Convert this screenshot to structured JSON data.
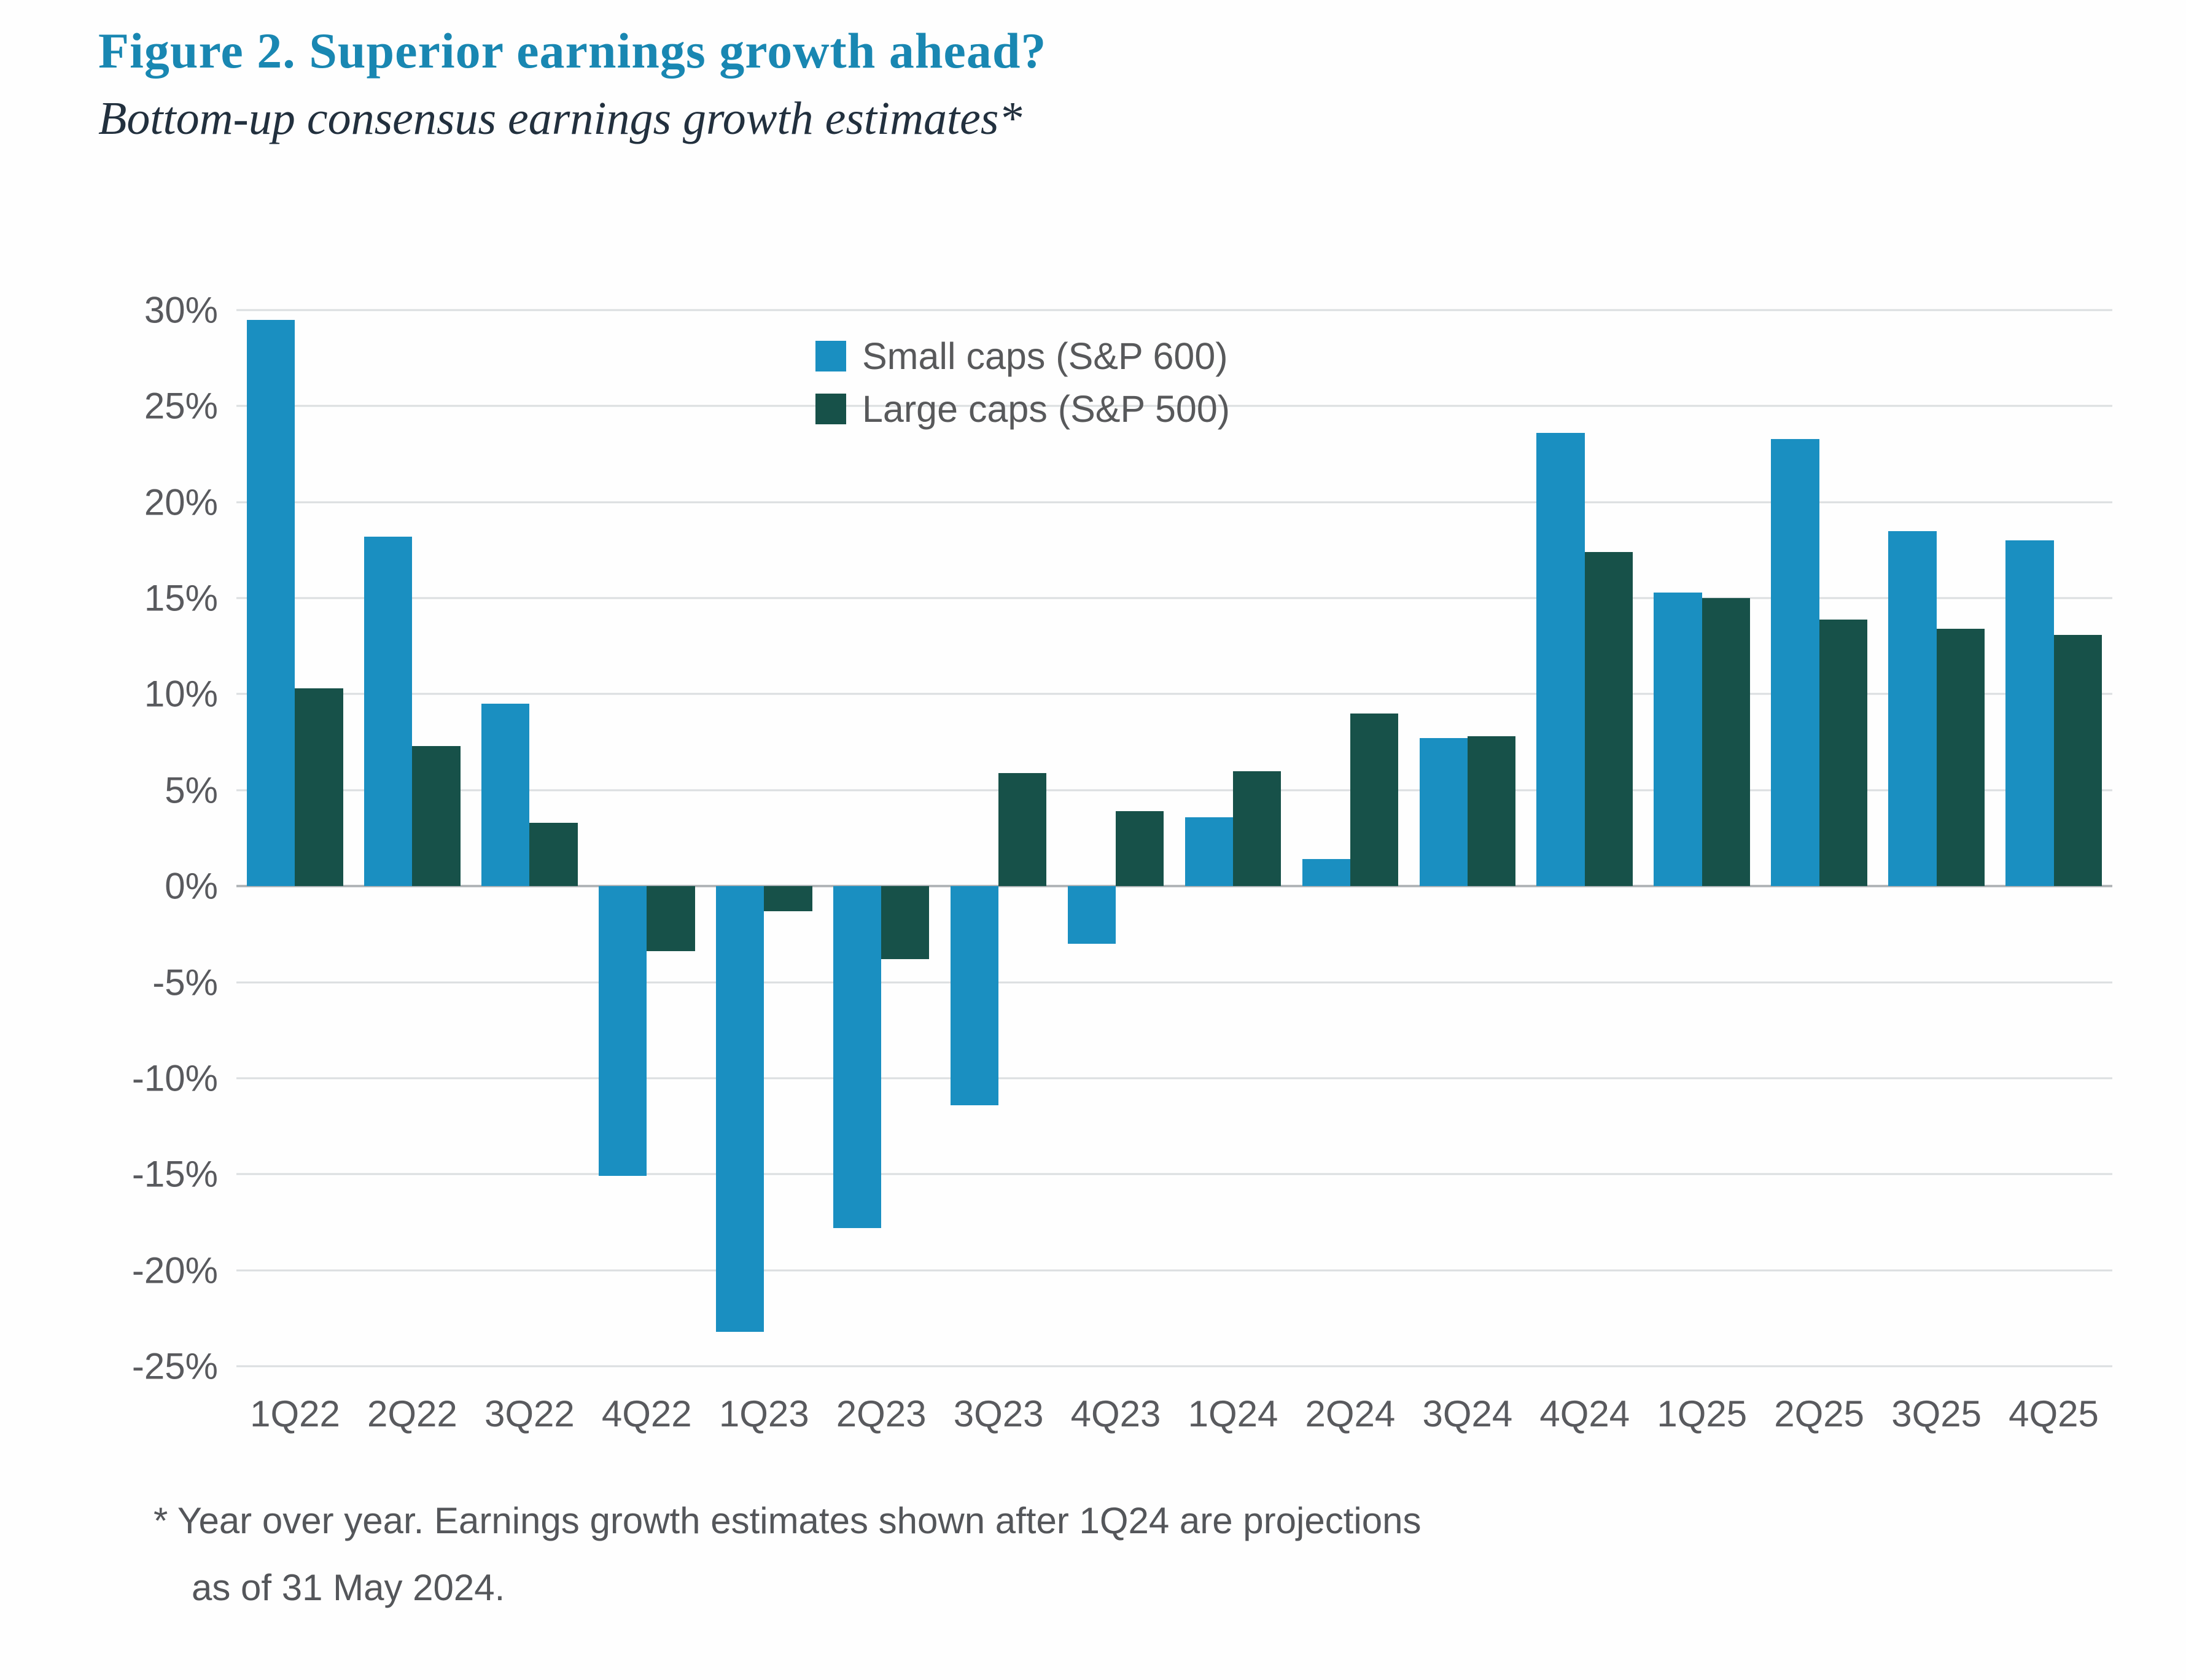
{
  "figure": {
    "title": "Figure 2. Superior earnings growth ahead?",
    "subtitle": "Bottom-up consensus earnings growth estimates*",
    "footnote": {
      "line1": "* Year over year. Earnings growth estimates shown after 1Q24 are projections",
      "line2": "as of 31 May 2024."
    }
  },
  "legend": {
    "items": [
      {
        "label": "Small caps (S&P 600)",
        "color": "#1A8FC1"
      },
      {
        "label": "Large caps (S&P 500)",
        "color": "#175149"
      }
    ]
  },
  "colors": {
    "title": "#1987B2",
    "subtitle": "#22303E",
    "axis_text": "#595A5E",
    "legend_text": "#58595B",
    "footnote_text": "#54565A",
    "gridline": "#DBDEE0",
    "zero_line": "#B2B6B9",
    "small_caps_bar": "#1A8FC1",
    "large_caps_bar": "#175149",
    "background": "#FEFEFE"
  },
  "chart_data": {
    "type": "bar",
    "title": "Figure 2. Superior earnings growth ahead?",
    "subtitle": "Bottom-up consensus earnings growth estimates*",
    "categories": [
      "1Q22",
      "2Q22",
      "3Q22",
      "4Q22",
      "1Q23",
      "2Q23",
      "3Q23",
      "4Q23",
      "1Q24",
      "2Q24",
      "3Q24",
      "4Q24",
      "1Q25",
      "2Q25",
      "3Q25",
      "4Q25"
    ],
    "series": [
      {
        "name": "Small caps (S&P 600)",
        "color": "#1A8FC1",
        "values": [
          29.5,
          18.2,
          9.5,
          -15.1,
          -23.2,
          -17.8,
          -11.4,
          -3.0,
          3.6,
          1.4,
          7.7,
          23.6,
          15.3,
          23.3,
          18.5,
          18.0
        ]
      },
      {
        "name": "Large caps (S&P 500)",
        "color": "#175149",
        "values": [
          10.3,
          7.3,
          3.3,
          -3.4,
          -1.3,
          -3.8,
          5.9,
          3.9,
          6.0,
          9.0,
          7.8,
          17.4,
          15.0,
          13.9,
          13.4,
          13.1
        ]
      }
    ],
    "xlabel": "",
    "ylabel": "",
    "y_ticks": [
      "30%",
      "25%",
      "20%",
      "15%",
      "10%",
      "5%",
      "0%",
      "-5%",
      "-10%",
      "-15%",
      "-20%",
      "-25%"
    ],
    "ylim": [
      -25,
      30
    ],
    "grid": true,
    "legend_position": "inside-top-center",
    "value_unit": "%"
  }
}
